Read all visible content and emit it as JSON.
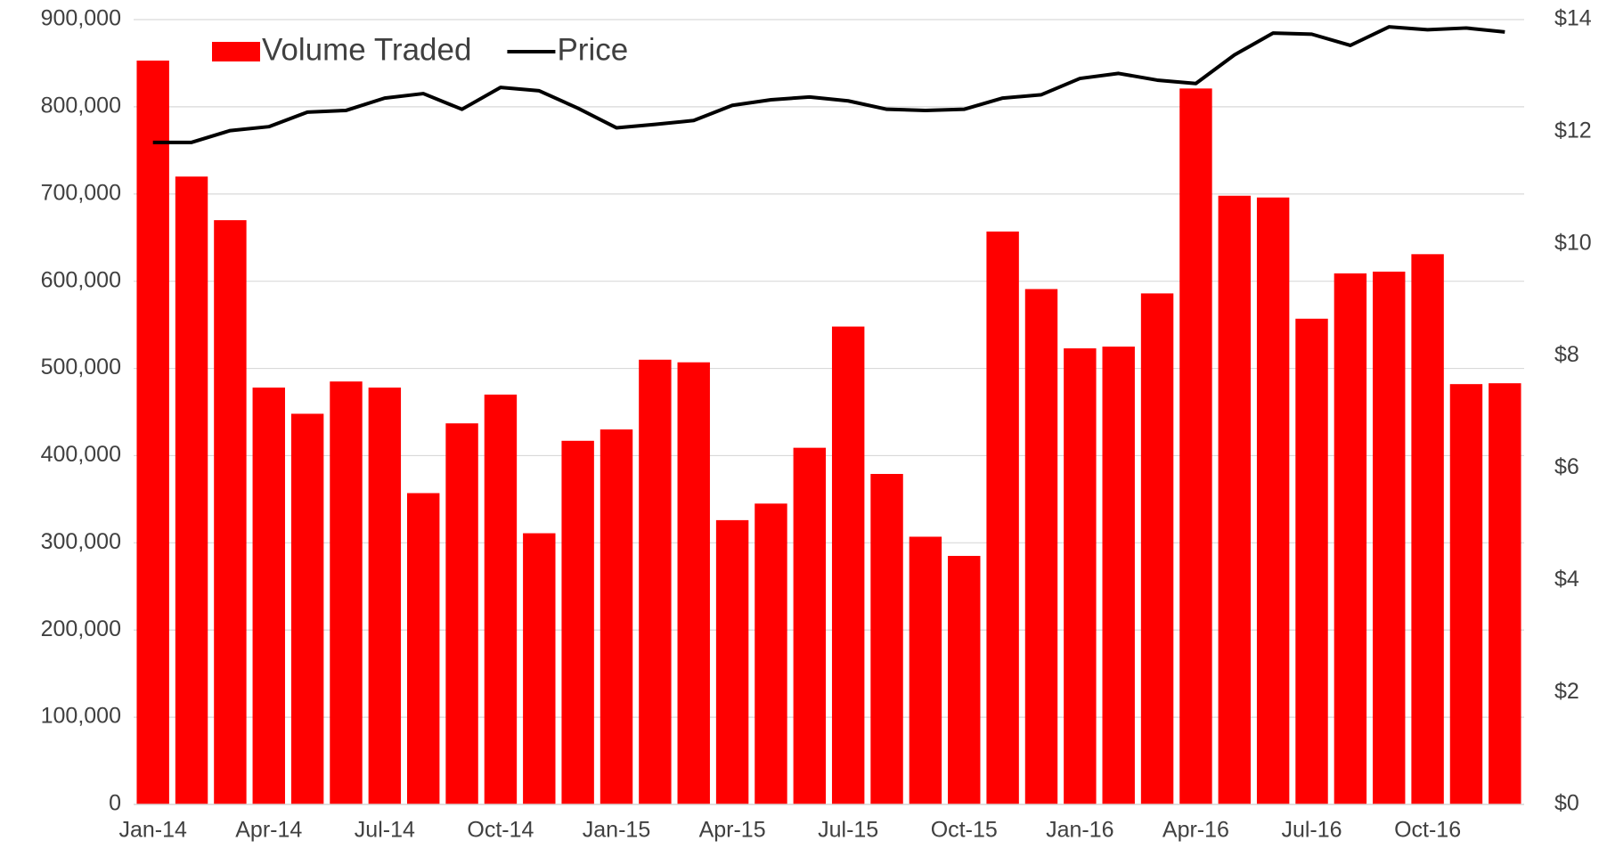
{
  "chart_data": {
    "type": "bar_line",
    "categories": [
      "Jan-14",
      null,
      null,
      "Apr-14",
      null,
      null,
      "Jul-14",
      null,
      null,
      "Oct-14",
      null,
      null,
      "Jan-15",
      null,
      null,
      "Apr-15",
      null,
      null,
      "Jul-15",
      null,
      null,
      "Oct-15",
      null,
      null,
      "Jan-16",
      null,
      null,
      "Apr-16",
      null,
      null,
      "Jul-16",
      null,
      null,
      "Oct-16",
      null,
      null
    ],
    "series": [
      {
        "name": "Volume Traded",
        "type": "bar",
        "color": "#ff0000",
        "values": [
          853000,
          720000,
          670000,
          478000,
          448000,
          485000,
          478000,
          357000,
          437000,
          470000,
          311000,
          417000,
          430000,
          510000,
          507000,
          326000,
          345000,
          409000,
          548000,
          379000,
          307000,
          285000,
          657000,
          591000,
          523000,
          525000,
          586000,
          821000,
          698000,
          696000,
          557000,
          609000,
          611000,
          631000,
          482000,
          483000
        ]
      },
      {
        "name": "Price",
        "type": "line",
        "axis": "y2",
        "color": "#000000",
        "values": [
          11.81,
          11.81,
          12.02,
          12.09,
          12.35,
          12.38,
          12.6,
          12.68,
          12.4,
          12.79,
          12.73,
          12.42,
          12.07,
          12.13,
          12.2,
          12.47,
          12.57,
          12.62,
          12.55,
          12.4,
          12.38,
          12.4,
          12.6,
          12.66,
          12.95,
          13.04,
          12.92,
          12.86,
          13.37,
          13.76,
          13.74,
          13.54,
          13.87,
          13.82,
          13.85,
          13.78
        ]
      }
    ],
    "ylim": [
      0,
      900000
    ],
    "yticks": [
      0,
      {
        "value": 100000,
        "label": "100,000"
      },
      {
        "value": 200000,
        "label": "200,000"
      },
      {
        "value": 300000,
        "label": "300,000"
      },
      {
        "value": 400000,
        "label": "400,000"
      },
      {
        "value": 500000,
        "label": "500,000"
      },
      {
        "value": 600000,
        "label": "600,000"
      },
      {
        "value": 700000,
        "label": "700,000"
      },
      {
        "value": 800000,
        "label": "800,000"
      },
      {
        "value": 900000,
        "label": "900,000"
      }
    ],
    "y2lim": [
      0,
      14
    ],
    "y2ticks": [
      {
        "value": 0,
        "label": "$0"
      },
      {
        "value": 2,
        "label": "$2"
      },
      {
        "value": 4,
        "label": "$4"
      },
      {
        "value": 6,
        "label": "$6"
      },
      {
        "value": 8,
        "label": "$8"
      },
      {
        "value": 10,
        "label": "$10"
      },
      {
        "value": 12,
        "label": "$12"
      },
      {
        "value": 14,
        "label": "$14"
      }
    ],
    "grid": true,
    "legend": "upper left"
  }
}
